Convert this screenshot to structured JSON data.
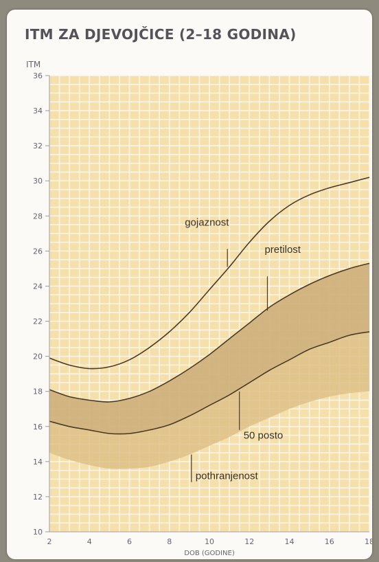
{
  "chart_data": {
    "type": "line",
    "title": "ITM ZA DJEVOJČICE (2–18 GODINA)",
    "xlabel": "DOB (GODINE)",
    "ylabel": "ITM",
    "xlim": [
      2,
      18
    ],
    "ylim": [
      10,
      36
    ],
    "x_ticks": [
      2,
      4,
      6,
      8,
      10,
      12,
      14,
      16,
      18
    ],
    "y_ticks": [
      10,
      12,
      14,
      16,
      18,
      20,
      22,
      24,
      26,
      28,
      30,
      32,
      34,
      36
    ],
    "grid": true,
    "series": [
      {
        "name": "gojaznost",
        "x": [
          2,
          3,
          4,
          5,
          6,
          7,
          8,
          9,
          10,
          11,
          12,
          13,
          14,
          15,
          16,
          17,
          18
        ],
        "y": [
          19.9,
          19.5,
          19.3,
          19.4,
          19.8,
          20.5,
          21.4,
          22.5,
          23.8,
          25.1,
          26.5,
          27.7,
          28.6,
          29.2,
          29.6,
          29.9,
          30.2
        ]
      },
      {
        "name": "pretilost",
        "x": [
          2,
          3,
          4,
          5,
          6,
          7,
          8,
          9,
          10,
          11,
          12,
          13,
          14,
          15,
          16,
          17,
          18
        ],
        "y": [
          18.1,
          17.7,
          17.5,
          17.4,
          17.6,
          18.0,
          18.6,
          19.3,
          20.1,
          21.0,
          21.9,
          22.8,
          23.5,
          24.1,
          24.6,
          25.0,
          25.3
        ]
      },
      {
        "name": "50 posto",
        "x": [
          2,
          3,
          4,
          5,
          6,
          7,
          8,
          9,
          10,
          11,
          12,
          13,
          14,
          15,
          16,
          17,
          18
        ],
        "y": [
          16.3,
          16.0,
          15.8,
          15.6,
          15.6,
          15.8,
          16.1,
          16.6,
          17.2,
          17.8,
          18.5,
          19.2,
          19.8,
          20.4,
          20.8,
          21.2,
          21.4
        ]
      },
      {
        "name": "pothranjenost",
        "x": [
          2,
          3,
          4,
          5,
          6,
          7,
          8,
          9,
          10,
          11,
          12,
          13,
          14,
          15,
          16,
          17,
          18
        ],
        "y": [
          14.5,
          14.1,
          13.8,
          13.6,
          13.6,
          13.7,
          14.0,
          14.4,
          14.9,
          15.4,
          16.0,
          16.5,
          17.0,
          17.4,
          17.7,
          17.9,
          18.0
        ]
      }
    ],
    "annotations": [
      {
        "text": "gojaznost",
        "series": "gojaznost",
        "x": 10.9,
        "y": 25.1
      },
      {
        "text": "pretilost",
        "series": "pretilost",
        "x": 12.9,
        "y": 22.6
      },
      {
        "text": "50 posto",
        "series": "50 posto",
        "x": 11.5,
        "y": 18.0
      },
      {
        "text": "pothranjenost",
        "series": "pothranjenost",
        "x": 9.1,
        "y": 14.4
      }
    ],
    "colors": {
      "plot_background": "#f5dfaa",
      "grid": "#fdf6e6",
      "band_light": "#ddc187",
      "band_dark": "#c4a677",
      "curve": "#4a3a26",
      "text": "#666470",
      "axis": "#9b99a2"
    }
  }
}
